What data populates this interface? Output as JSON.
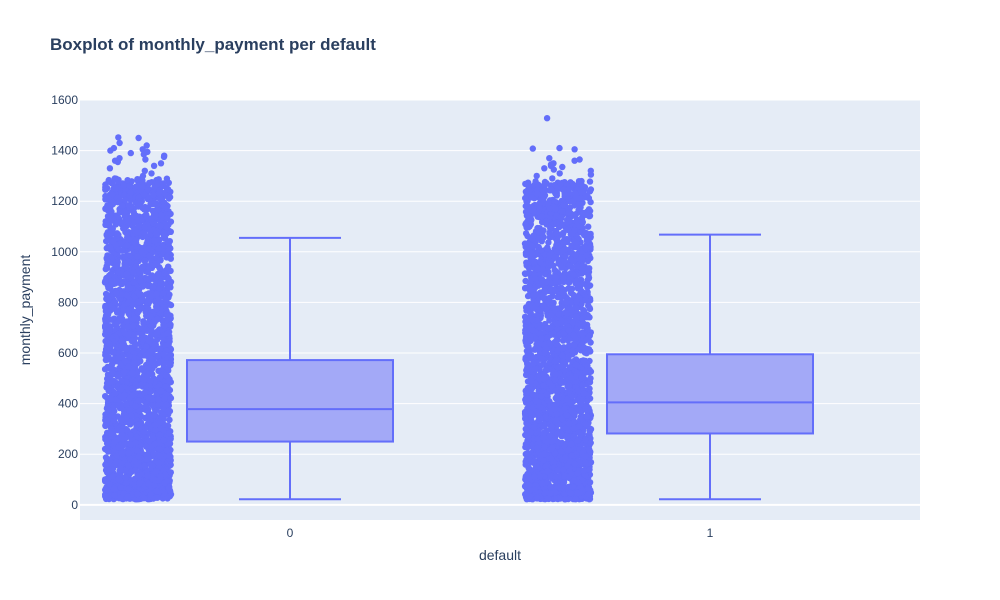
{
  "chart_data": {
    "type": "box",
    "title": "Boxplot of monthly_payment per default",
    "xlabel": "default",
    "ylabel": "monthly_payment",
    "categories": [
      "0",
      "1"
    ],
    "ylim": [
      -60,
      1600
    ],
    "yticks": [
      0,
      200,
      400,
      600,
      800,
      1000,
      1200,
      1400,
      1600
    ],
    "grid": true,
    "legend": "none",
    "colors": {
      "marker": "#636efa",
      "box_fill": "#a3a9f7",
      "plot_bg": "#e5ecf6",
      "grid": "#ffffff",
      "text": "#2a3f5f"
    },
    "series": [
      {
        "category": "0",
        "lowerfence": 22,
        "q1": 250,
        "median": 378,
        "q3": 572,
        "upperfence": 1055,
        "points_min": 22,
        "points_dense_max": 1290,
        "outliers": [
          1300,
          1310,
          1320,
          1330,
          1340,
          1350,
          1355,
          1360,
          1365,
          1370,
          1375,
          1380,
          1385,
          1390,
          1395,
          1400,
          1405,
          1410,
          1420,
          1430,
          1450,
          1452
        ]
      },
      {
        "category": "1",
        "lowerfence": 22,
        "q1": 282,
        "median": 405,
        "q3": 595,
        "upperfence": 1068,
        "points_min": 22,
        "points_dense_max": 1280,
        "outliers": [
          1290,
          1300,
          1305,
          1310,
          1320,
          1325,
          1330,
          1335,
          1340,
          1345,
          1350,
          1360,
          1365,
          1370,
          1405,
          1408,
          1410,
          1528
        ]
      }
    ]
  }
}
